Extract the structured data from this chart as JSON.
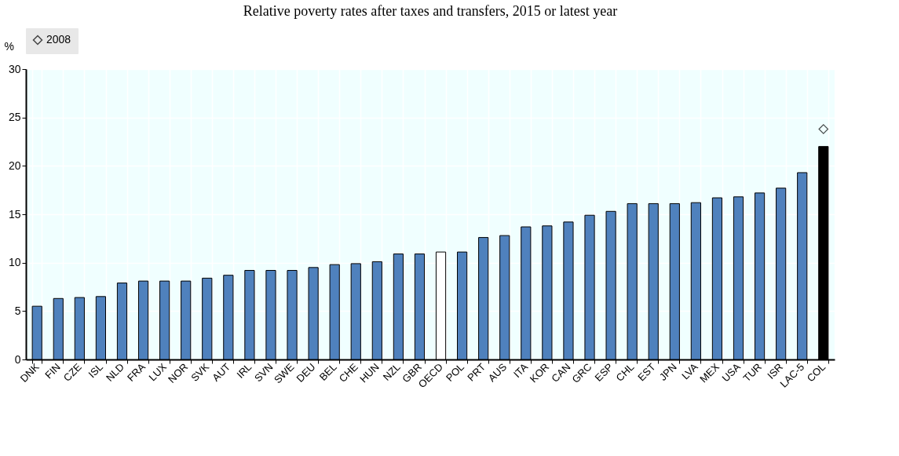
{
  "chart_data": {
    "type": "bar",
    "title": "Relative poverty rates after taxes and transfers, 2015 or latest year",
    "ylabel": "%",
    "categories": [
      "DNK",
      "FIN",
      "CZE",
      "ISL",
      "NLD",
      "FRA",
      "LUX",
      "NOR",
      "SVK",
      "AUT",
      "IRL",
      "SVN",
      "SWE",
      "DEU",
      "BEL",
      "CHE",
      "HUN",
      "NZL",
      "GBR",
      "OECD",
      "POL",
      "PRT",
      "AUS",
      "ITA",
      "KOR",
      "CAN",
      "GRC",
      "ESP",
      "CHL",
      "EST",
      "JPN",
      "LVA",
      "MEX",
      "USA",
      "TUR",
      "ISR",
      "LAC-5",
      "COL"
    ],
    "series": [
      {
        "colors": [
          "#4f81bd",
          "#4f81bd",
          "#4f81bd",
          "#4f81bd",
          "#4f81bd",
          "#4f81bd",
          "#4f81bd",
          "#4f81bd",
          "#4f81bd",
          "#4f81bd",
          "#4f81bd",
          "#4f81bd",
          "#4f81bd",
          "#4f81bd",
          "#4f81bd",
          "#4f81bd",
          "#4f81bd",
          "#4f81bd",
          "#4f81bd",
          "#ffffff",
          "#4f81bd",
          "#4f81bd",
          "#4f81bd",
          "#4f81bd",
          "#4f81bd",
          "#4f81bd",
          "#4f81bd",
          "#4f81bd",
          "#4f81bd",
          "#4f81bd",
          "#4f81bd",
          "#4f81bd",
          "#4f81bd",
          "#4f81bd",
          "#4f81bd",
          "#4f81bd",
          "#4f81bd",
          "#000000"
        ],
        "values": [
          5.5,
          6.3,
          6.4,
          6.5,
          7.9,
          8.1,
          8.1,
          8.1,
          8.4,
          8.7,
          9.2,
          9.2,
          9.2,
          9.5,
          9.8,
          9.9,
          10.1,
          10.9,
          10.9,
          11.1,
          11.1,
          12.6,
          12.8,
          13.7,
          13.8,
          14.2,
          14.9,
          15.3,
          16.1,
          16.1,
          16.1,
          16.2,
          16.7,
          16.8,
          17.2,
          17.7,
          19.3,
          22.0
        ]
      },
      {
        "type": "scatter",
        "name": "2008",
        "color": "#000000",
        "marker": "diamond",
        "values": [
          null,
          null,
          null,
          null,
          null,
          null,
          null,
          null,
          null,
          null,
          null,
          null,
          null,
          null,
          null,
          null,
          null,
          null,
          null,
          null,
          null,
          null,
          null,
          null,
          null,
          null,
          null,
          null,
          null,
          null,
          null,
          null,
          null,
          null,
          null,
          null,
          null,
          23.8
        ]
      }
    ],
    "ylim": [
      0,
      30
    ],
    "yticks": [
      0,
      5,
      10,
      15,
      20,
      25,
      30
    ],
    "grid": true,
    "legend": "top"
  }
}
